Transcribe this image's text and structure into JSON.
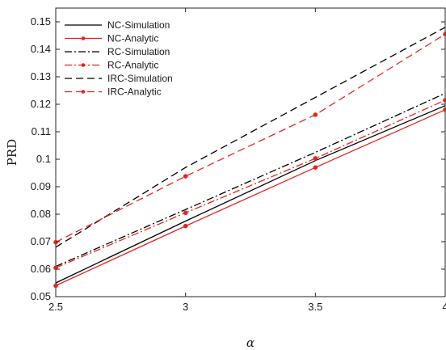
{
  "chart_data": {
    "type": "line",
    "xlabel": "α",
    "ylabel": "PRD",
    "xlim": [
      2.5,
      4
    ],
    "ylim": [
      0.05,
      0.155
    ],
    "xticks": [
      "2.5",
      "3",
      "3.5",
      "4"
    ],
    "yticks": [
      "0.05",
      "0.06",
      "0.07",
      "0.08",
      "0.09",
      "0.1",
      "0.11",
      "0.12",
      "0.13",
      "0.14",
      "0.15"
    ],
    "grid": false,
    "legend_position": "top-left",
    "x": [
      2.5,
      3,
      3.5,
      4
    ],
    "series": [
      {
        "name": "NC-Simulation",
        "color": "#000000",
        "dash": "solid",
        "marker": false,
        "values": [
          0.055,
          0.0775,
          0.0995,
          0.1195
        ]
      },
      {
        "name": "NC-Analytic",
        "color": "#e8231c",
        "dash": "solid",
        "marker": true,
        "values": [
          0.054,
          0.0757,
          0.097,
          0.118
        ]
      },
      {
        "name": "RC-Simulation",
        "color": "#000000",
        "dash": "dashdot",
        "marker": false,
        "values": [
          0.061,
          0.0817,
          0.1025,
          0.124
        ]
      },
      {
        "name": "RC-Analytic",
        "color": "#e8231c",
        "dash": "dashdot",
        "marker": true,
        "values": [
          0.0605,
          0.0805,
          0.1003,
          0.1215
        ]
      },
      {
        "name": "IRC-Simulation",
        "color": "#000000",
        "dash": "dashed",
        "marker": false,
        "values": [
          0.068,
          0.097,
          0.1225,
          0.148
        ]
      },
      {
        "name": "IRC-Analytic",
        "color": "#e8231c",
        "dash": "dashed",
        "marker": true,
        "values": [
          0.0698,
          0.0938,
          0.1162,
          0.1455
        ]
      }
    ]
  }
}
